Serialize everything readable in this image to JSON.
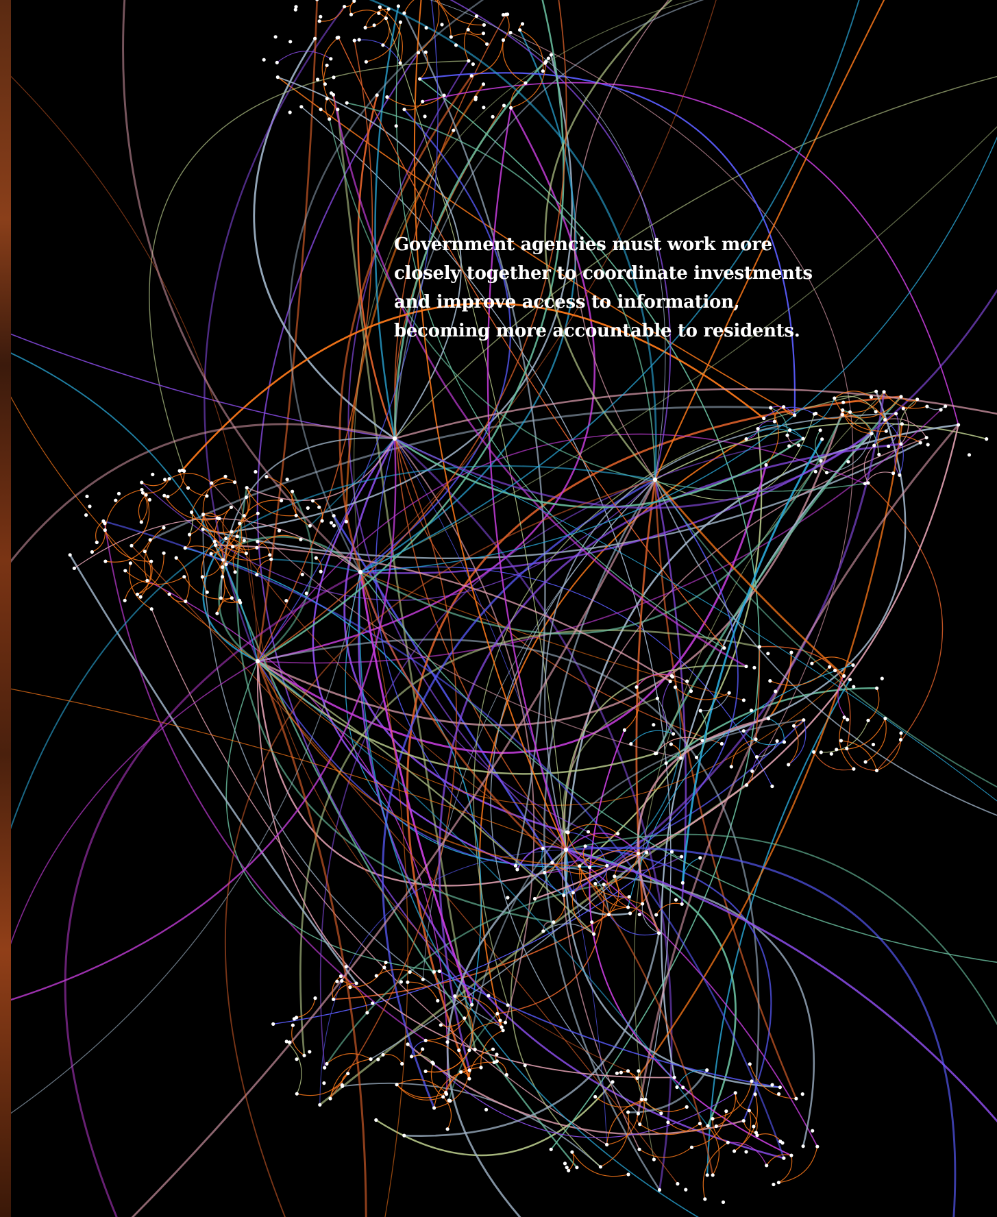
{
  "page": {
    "background": "#000000",
    "accent_orange": "#ff7a1a",
    "node_color": "#ffffff",
    "headline_lines": [
      "Government agencies must work more",
      "closely together to coordinate investments",
      "and improve access to information,",
      "becoming more accountable to residents."
    ]
  },
  "network": {
    "link_colors": [
      "#ff7a1a",
      "#e0622a",
      "#c63ddc",
      "#8a4ce8",
      "#5a5cff",
      "#2aa8d8",
      "#6ac0a0",
      "#b7c98a",
      "#e0a0b0",
      "#a0b4c8"
    ]
  }
}
